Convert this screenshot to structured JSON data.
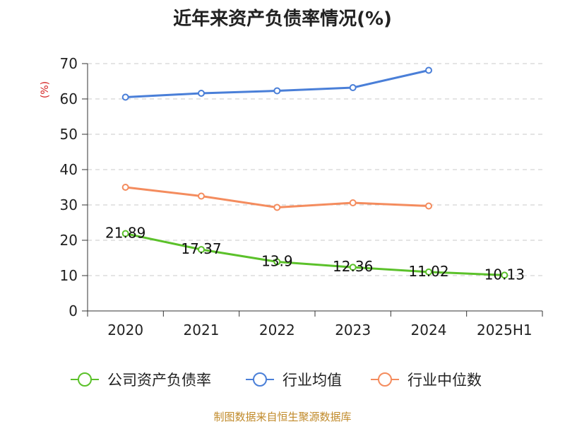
{
  "chart_data": {
    "type": "line",
    "title": "近年来资产负债率情况(%)",
    "ylabel": "(%)",
    "xlabel": "",
    "categories": [
      "2020",
      "2021",
      "2022",
      "2023",
      "2024",
      "2025H1"
    ],
    "ylim": [
      0,
      70
    ],
    "yticks": [
      0,
      10,
      20,
      30,
      40,
      50,
      60,
      70
    ],
    "grid": true,
    "legend_position": "bottom",
    "series": [
      {
        "name": "公司资产负债率",
        "color": "#5bc12a",
        "values": [
          21.89,
          17.37,
          13.9,
          12.36,
          11.02,
          10.13
        ],
        "labels": [
          "21.89",
          "17.37",
          "13.9",
          "12.36",
          "11.02",
          "10.13"
        ]
      },
      {
        "name": "行业均值",
        "color": "#4a7fd8",
        "values": [
          60.5,
          61.6,
          62.3,
          63.2,
          68.1,
          null
        ]
      },
      {
        "name": "行业中位数",
        "color": "#f48c5e",
        "values": [
          35.0,
          32.5,
          29.3,
          30.6,
          29.7,
          null
        ]
      }
    ]
  },
  "footer": {
    "source": "制图数据来自恒生聚源数据库"
  }
}
